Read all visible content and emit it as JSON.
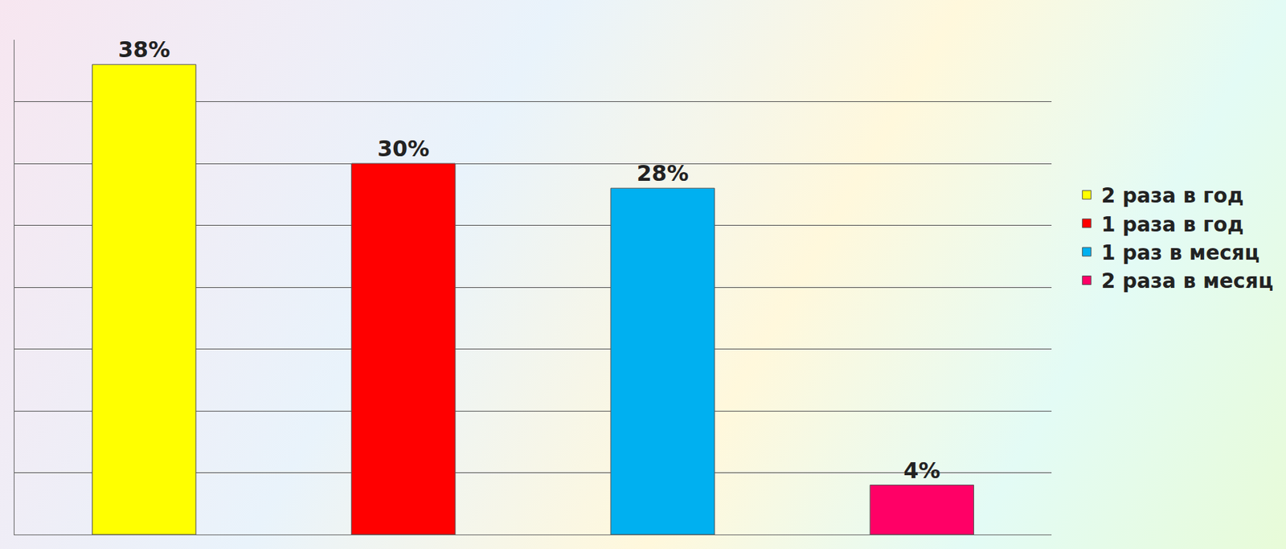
{
  "chart_data": {
    "type": "bar",
    "categories": [
      "2 раза в год",
      "1 раза в год",
      "1 раз в месяц",
      "2 раза в месяц"
    ],
    "values": [
      38,
      30,
      28,
      4
    ],
    "value_labels": [
      "38%",
      "30%",
      "28%",
      "4%"
    ],
    "colors": [
      "#ffff00",
      "#ff0000",
      "#00b0f0",
      "#ff0066"
    ],
    "ylim": [
      0,
      40
    ],
    "yticks": [
      0,
      5,
      10,
      15,
      20,
      25,
      30,
      35,
      40
    ],
    "grid": true,
    "data_labels": true,
    "tick_labels": false,
    "legend": "right"
  }
}
